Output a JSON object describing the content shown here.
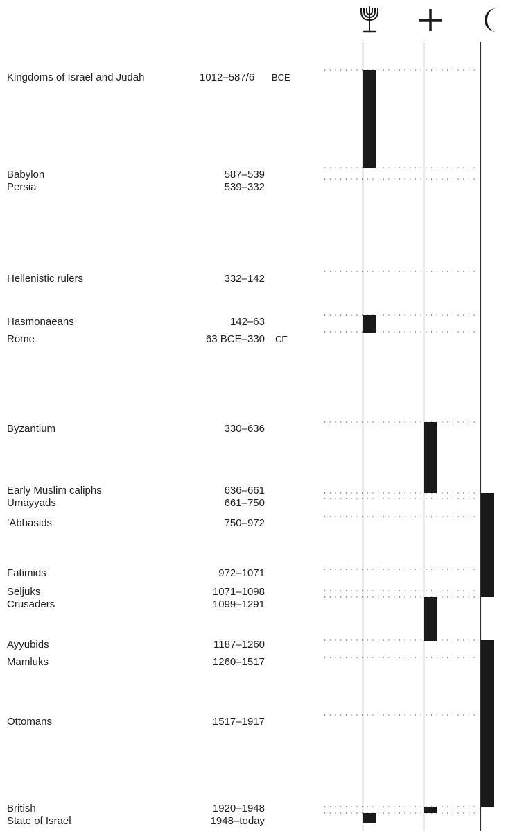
{
  "rows": [
    {
      "name": "Kingdoms of Israel and Judah",
      "dates": "1012–587/6",
      "era": "BCE"
    },
    {
      "name": "Babylon",
      "dates": "587–539"
    },
    {
      "name": "Persia",
      "dates": "539–332"
    },
    {
      "name": "Hellenistic rulers",
      "dates": "332–142"
    },
    {
      "name": "Hasmonaeans",
      "dates": "142–63"
    },
    {
      "name": "Rome",
      "dates": "63 BCE–330",
      "era": "CE"
    },
    {
      "name": "Byzantium",
      "dates": "330–636"
    },
    {
      "name": "Early Muslim caliphs",
      "dates": "636–661"
    },
    {
      "name": "Umayyads",
      "dates": "661–750"
    },
    {
      "name": "’Abbasids",
      "dates": "750–972"
    },
    {
      "name": "Fatimids",
      "dates": "972–1071"
    },
    {
      "name": "Seljuks",
      "dates": "1071–1098"
    },
    {
      "name": "Crusaders",
      "dates": "1099–1291"
    },
    {
      "name": "Ayyubids",
      "dates": "1187–1260"
    },
    {
      "name": "Mamluks",
      "dates": "1260–1517"
    },
    {
      "name": "Ottomans",
      "dates": "1517–1917"
    },
    {
      "name": "British",
      "dates": "1920–1948"
    },
    {
      "name": "State of Israel",
      "dates": "1948–today"
    }
  ],
  "columns": [
    {
      "icon": "menorah-icon"
    },
    {
      "icon": "cross-icon"
    },
    {
      "icon": "crescent-icon"
    }
  ],
  "colors": {
    "text": "#222222",
    "bar": "#1a1a1a",
    "rule": "#333333",
    "dots": "#666666"
  }
}
